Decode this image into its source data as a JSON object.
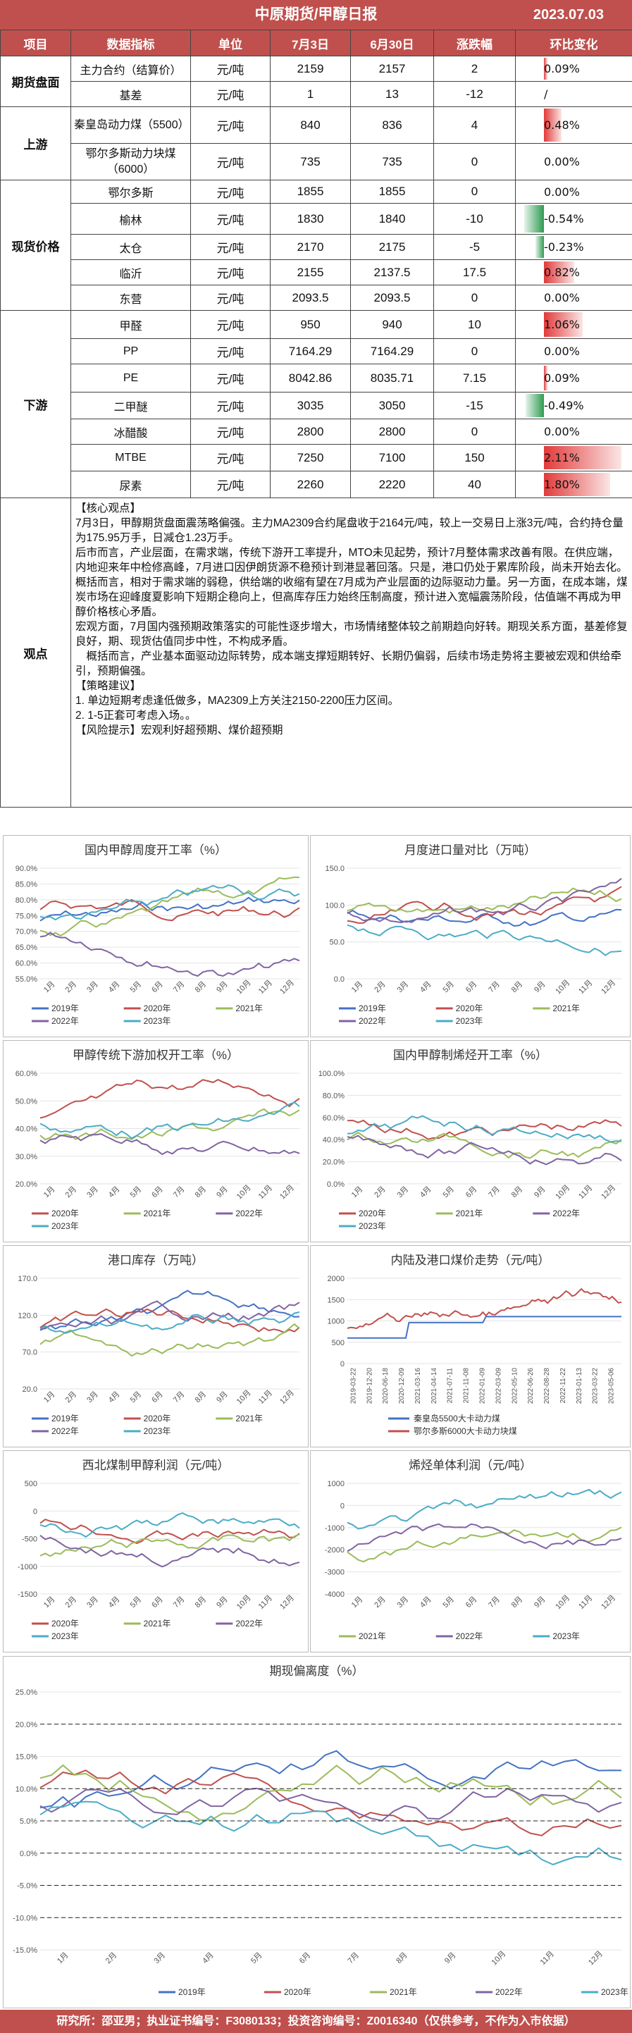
{
  "header": {
    "title": "中原期货/甲醇日报",
    "date": "2023.07.03"
  },
  "table": {
    "columns": [
      "项目",
      "数据指标",
      "单位",
      "7月3日",
      "6月30日",
      "涨跌幅",
      "环比变化"
    ],
    "rows": [
      {
        "category": "期货盘面",
        "span": 2,
        "name": "主力合约（结算价）",
        "unit": "元/吨",
        "v1": "2159",
        "v2": "2157",
        "diff": "2",
        "chg": "0.09%",
        "pct": 0.09,
        "h": 36
      },
      {
        "name": "基差",
        "unit": "元/吨",
        "v1": "1",
        "v2": "13",
        "diff": "-12",
        "chg": "/",
        "pct": 0,
        "h": 36
      },
      {
        "category": "上游",
        "span": 2,
        "name": "秦皇岛动力煤（5500）",
        "unit": "元/吨",
        "v1": "840",
        "v2": "836",
        "diff": "4",
        "chg": "0.48%",
        "pct": 0.48,
        "h": 52
      },
      {
        "name": "鄂尔多斯动力块煤（6000）",
        "unit": "元/吨",
        "v1": "735",
        "v2": "735",
        "diff": "0",
        "chg": "0.00%",
        "pct": 0,
        "h": 52
      },
      {
        "category": "现货价格",
        "span": 5,
        "name": "鄂尔多斯",
        "unit": "元/吨",
        "v1": "1855",
        "v2": "1855",
        "diff": "0",
        "chg": "0.00%",
        "pct": 0,
        "h": 33
      },
      {
        "name": "榆林",
        "unit": "元/吨",
        "v1": "1830",
        "v2": "1840",
        "diff": "-10",
        "chg": "-0.54%",
        "pct": -0.54,
        "h": 44
      },
      {
        "name": "太仓",
        "unit": "元/吨",
        "v1": "2170",
        "v2": "2175",
        "diff": "-5",
        "chg": "-0.23%",
        "pct": -0.23,
        "h": 36
      },
      {
        "name": "临沂",
        "unit": "元/吨",
        "v1": "2155",
        "v2": "2137.5",
        "diff": "17.5",
        "chg": "0.82%",
        "pct": 0.82,
        "h": 36
      },
      {
        "name": "东营",
        "unit": "元/吨",
        "v1": "2093.5",
        "v2": "2093.5",
        "diff": "0",
        "chg": "0.00%",
        "pct": 0,
        "h": 36
      },
      {
        "category": "下游",
        "span": 7,
        "name": "甲醛",
        "unit": "元/吨",
        "v1": "950",
        "v2": "940",
        "diff": "10",
        "chg": "1.06%",
        "pct": 1.06,
        "h": 40
      },
      {
        "name": "PP",
        "unit": "元/吨",
        "v1": "7164.29",
        "v2": "7164.29",
        "diff": "0",
        "chg": "0.00%",
        "pct": 0,
        "h": 36
      },
      {
        "name": "PE",
        "unit": "元/吨",
        "v1": "8042.86",
        "v2": "8035.71",
        "diff": "7.15",
        "chg": "0.09%",
        "pct": 0.09,
        "h": 40
      },
      {
        "name": "二甲醚",
        "unit": "元/吨",
        "v1": "3035",
        "v2": "3050",
        "diff": "-15",
        "chg": "-0.49%",
        "pct": -0.49,
        "h": 38
      },
      {
        "name": "冰醋酸",
        "unit": "元/吨",
        "v1": "2800",
        "v2": "2800",
        "diff": "0",
        "chg": "0.00%",
        "pct": 0,
        "h": 36
      },
      {
        "name": "MTBE",
        "unit": "元/吨",
        "v1": "7250",
        "v2": "7100",
        "diff": "150",
        "chg": "2.11%",
        "pct": 2.11,
        "h": 38
      },
      {
        "name": "尿素",
        "unit": "元/吨",
        "v1": "2260",
        "v2": "2220",
        "diff": "40",
        "chg": "1.80%",
        "pct": 1.8,
        "h": 38
      }
    ]
  },
  "observation": {
    "label": "观点",
    "lines": [
      "【核心观点】",
      "7月3日，甲醇期货盘面震荡略偏强。主力MA2309合约尾盘收于2164元/吨，较上一交易日上涨3元/吨，合约持仓量为175.95万手，日减仓1.23万手。",
      "后市而言，产业层面，在需求端，传统下游开工率提升，MTO未见起势，预计7月整体需求改善有限。在供应端，内地迎来年中检修高峰，7月进口因伊朗货源不稳预计到港显著回落。只是，港口仍处于累库阶段，尚未开始去化。概括而言，相对于需求端的弱稳，供给端的收缩有望在7月成为产业层面的边际驱动力量。另一方面，在成本端，煤炭市场在迎峰度夏影响下短期企稳向上，但高库存压力始终压制高度，预计进入宽幅震荡阶段，估值端不再成为甲醇价格核心矛盾。",
      "宏观方面，7月国内强预期政策落实的可能性逐步增大，市场情绪整体较之前期趋向好转。期现关系方面，基差修复良好，期、现货估值同步中性，不构成矛盾。",
      "概括而言，产业基本面驱动边际转势，成本端支撑短期转好、长期仍偏弱，后续市场走势将主要被宏观和供给牵引，预期偏强。",
      "【策略建议】",
      "1. 单边短期考虑逢低做多，MA2309上方关注2150-2200压力区间。",
      "2. 1-5正套可考虑入场。。",
      "【风险提示】宏观利好超预期、煤价超预期"
    ]
  },
  "charts": [
    {
      "title": "国内甲醇周度开工率（%）",
      "type": "line",
      "yticks": [
        "55.0%",
        "60.0%",
        "65.0%",
        "70.0%",
        "75.0%",
        "80.0%",
        "85.0%",
        "90.0%"
      ],
      "ylim": [
        55,
        90
      ],
      "xticks": [
        "1月",
        "2月",
        "3月",
        "4月",
        "5月",
        "6月",
        "7月",
        "8月",
        "9月",
        "10月",
        "11月",
        "12月"
      ],
      "legend": [
        "2019年",
        "2020年",
        "2021年",
        "2022年",
        "2023年"
      ]
    },
    {
      "title": "月度进口量对比（万吨）",
      "type": "line",
      "yticks": [
        "0.0",
        "50.0",
        "100.0",
        "150.0"
      ],
      "ylim": [
        0,
        150
      ],
      "xticks": [
        "1月",
        "2月",
        "3月",
        "4月",
        "5月",
        "6月",
        "7月",
        "8月",
        "9月",
        "10月",
        "11月",
        "12月"
      ],
      "legend": [
        "2019年",
        "2020年",
        "2021年",
        "2022年",
        "2023年"
      ]
    },
    {
      "title": "甲醇传统下游加权开工率（%）",
      "type": "line",
      "yticks": [
        "20.0%",
        "30.0%",
        "40.0%",
        "50.0%",
        "60.0%"
      ],
      "ylim": [
        20,
        60
      ],
      "xticks": [
        "1月",
        "2月",
        "3月",
        "4月",
        "5月",
        "6月",
        "7月",
        "8月",
        "9月",
        "10月",
        "11月",
        "12月"
      ],
      "legend": [
        "2020年",
        "2021年",
        "2022年",
        "2023年"
      ]
    },
    {
      "title": "国内甲醇制烯烃开工率（%）",
      "type": "line",
      "yticks": [
        "0.0%",
        "20.0%",
        "40.0%",
        "60.0%",
        "80.0%",
        "100.0%"
      ],
      "ylim": [
        0,
        100
      ],
      "xticks": [
        "1月",
        "2月",
        "3月",
        "4月",
        "5月",
        "6月",
        "7月",
        "8月",
        "9月",
        "10月",
        "11月",
        "12月"
      ],
      "legend": [
        "2020年",
        "2021年",
        "2022年",
        "2023年"
      ]
    },
    {
      "title": "港口库存（万吨）",
      "type": "line",
      "yticks": [
        "20.0",
        "70.0",
        "120.0",
        "170.0"
      ],
      "ylim": [
        20,
        170
      ],
      "xticks": [
        "1月",
        "2月",
        "3月",
        "4月",
        "5月",
        "6月",
        "7月",
        "8月",
        "9月",
        "10月",
        "11月",
        "12月"
      ],
      "legend": [
        "2019年",
        "2020年",
        "2021年",
        "2022年",
        "2023年"
      ]
    },
    {
      "title": "内陆及港口煤价走势（元/吨）",
      "type": "line",
      "yticks": [
        "0",
        "500",
        "1000",
        "1500",
        "2000"
      ],
      "ylim": [
        0,
        2000
      ],
      "xticks": [
        "2019-03-22",
        "2019-12-20",
        "2020-06-18",
        "2020-12-09",
        "2021-03-16",
        "2021-04-14",
        "2021-07-11",
        "2021-11-08",
        "2022-01-09",
        "2022-03-09",
        "2022-05-10",
        "2022-06-26",
        "2022-08-28",
        "2022-11-22",
        "2023-01-13",
        "2023-03-22",
        "2023-05-06"
      ],
      "legend": [
        "秦皇岛5500大卡动力煤",
        "鄂尔多斯6000大卡动力块煤"
      ]
    },
    {
      "title": "西北煤制甲醇利润（元/吨）",
      "type": "line",
      "yticks": [
        "-1500",
        "-1000",
        "-500",
        "0",
        "500"
      ],
      "ylim": [
        -1500,
        500
      ],
      "xticks": [
        "1月",
        "2月",
        "3月",
        "4月",
        "5月",
        "6月",
        "7月",
        "8月",
        "9月",
        "10月",
        "11月",
        "12月"
      ],
      "legend": [
        "2020年",
        "2021年",
        "2022年",
        "2023年"
      ]
    },
    {
      "title": "烯烃单体利润（元/吨）",
      "type": "line",
      "yticks": [
        "-4000",
        "-3000",
        "-2000",
        "-1000",
        "0",
        "1000"
      ],
      "ylim": [
        -4000,
        1000
      ],
      "xticks": [
        "1月",
        "2月",
        "3月",
        "4月",
        "5月",
        "6月",
        "7月",
        "8月",
        "9月",
        "10月",
        "11月",
        "12月"
      ],
      "legend": [
        "2021年",
        "2022年",
        "2023年"
      ]
    },
    {
      "title": "期现偏离度（%）",
      "type": "line",
      "yticks": [
        "-15.0%",
        "-10.0%",
        "-5.0%",
        "0.0%",
        "5.0%",
        "10.0%",
        "15.0%",
        "20.0%",
        "25.0%"
      ],
      "ylim": [
        -15,
        25
      ],
      "xticks": [
        "1月",
        "2月",
        "3月",
        "4月",
        "5月",
        "6月",
        "7月",
        "8月",
        "9月",
        "10月",
        "11月",
        "12月"
      ],
      "legend": [
        "2019年",
        "2020年",
        "2021年",
        "2022年",
        "2023年"
      ]
    }
  ],
  "footer": {
    "text": "研究所：邵亚男；执业证书编号：F3080133；投资咨询编号：Z0016340（仅供参考，不作为入市依据）"
  },
  "colors": {
    "accent": "#c0504d",
    "y2019": "#4472c4",
    "y2020": "#c0504d",
    "y2021": "#9bbb59",
    "y2022": "#8064a2",
    "y2023": "#4bacc6"
  }
}
